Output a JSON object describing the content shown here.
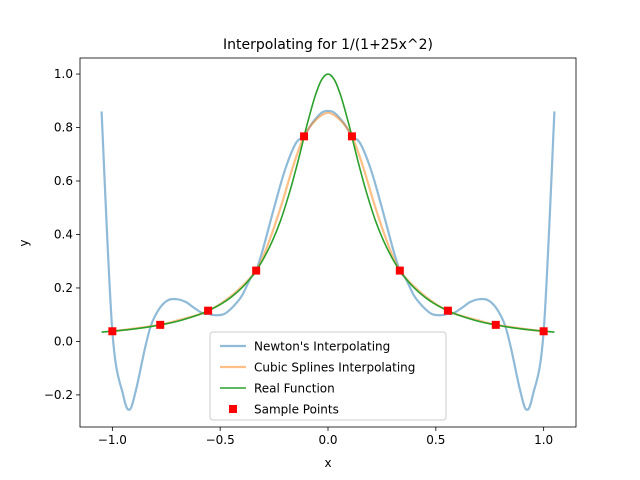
{
  "chart_data": {
    "type": "line",
    "title": "Interpolating for 1/(1+25x^2)",
    "xlabel": "x",
    "ylabel": "y",
    "xlim": [
      -1.15,
      1.15
    ],
    "ylim": [
      -0.32,
      1.06
    ],
    "xticks": [
      -1.0,
      -0.5,
      0.0,
      0.5,
      1.0
    ],
    "xtick_labels": [
      "−1.0",
      "−0.5",
      "0.0",
      "0.5",
      "1.0"
    ],
    "yticks": [
      -0.2,
      0.0,
      0.2,
      0.4,
      0.6,
      0.8,
      1.0
    ],
    "ytick_labels": [
      "−0.2",
      "0.0",
      "0.2",
      "0.4",
      "0.6",
      "0.8",
      "1.0"
    ],
    "grid": false,
    "legend_position": "lower center",
    "series": [
      {
        "name": "Newton's Interpolating",
        "kind": "line",
        "color": "#1f77b4",
        "alpha": 0.5,
        "x": [
          -1.05,
          -1.0,
          -0.95,
          -0.92,
          -0.89,
          -0.85,
          -0.82,
          -0.78,
          -0.74,
          -0.7,
          -0.66,
          -0.62,
          -0.58,
          -0.556,
          -0.52,
          -0.48,
          -0.44,
          -0.4,
          -0.36,
          -0.333,
          -0.3,
          -0.25,
          -0.2,
          -0.15,
          -0.111,
          -0.07,
          -0.03,
          0.0,
          0.03,
          0.07,
          0.111,
          0.15,
          0.2,
          0.25,
          0.3,
          0.333,
          0.36,
          0.4,
          0.44,
          0.48,
          0.52,
          0.556,
          0.58,
          0.62,
          0.66,
          0.7,
          0.74,
          0.78,
          0.82,
          0.85,
          0.89,
          0.92,
          0.95,
          1.0,
          1.05
        ],
        "y": [
          0.86,
          0.038,
          -0.2,
          -0.255,
          -0.18,
          -0.03,
          0.062,
          0.125,
          0.155,
          0.158,
          0.148,
          0.125,
          0.105,
          0.103,
          0.098,
          0.103,
          0.13,
          0.17,
          0.235,
          0.265,
          0.35,
          0.5,
          0.64,
          0.74,
          0.77,
          0.82,
          0.855,
          0.862,
          0.855,
          0.82,
          0.77,
          0.74,
          0.64,
          0.5,
          0.35,
          0.265,
          0.235,
          0.17,
          0.13,
          0.103,
          0.098,
          0.103,
          0.105,
          0.125,
          0.148,
          0.158,
          0.155,
          0.125,
          0.062,
          -0.03,
          -0.18,
          -0.255,
          -0.2,
          0.038,
          0.86
        ]
      },
      {
        "name": "Cubic Splines Interpolating",
        "kind": "line",
        "color": "#ff7f0e",
        "alpha": 0.5,
        "x": [
          -1.0,
          -0.9,
          -0.778,
          -0.7,
          -0.6,
          -0.556,
          -0.5,
          -0.42,
          -0.333,
          -0.28,
          -0.22,
          -0.16,
          -0.111,
          -0.06,
          0.0,
          0.06,
          0.111,
          0.16,
          0.22,
          0.28,
          0.333,
          0.42,
          0.5,
          0.556,
          0.6,
          0.7,
          0.778,
          0.9,
          1.0
        ],
        "y": [
          0.038,
          0.048,
          0.062,
          0.078,
          0.1,
          0.115,
          0.14,
          0.19,
          0.265,
          0.36,
          0.5,
          0.66,
          0.767,
          0.825,
          0.855,
          0.825,
          0.767,
          0.66,
          0.5,
          0.36,
          0.265,
          0.19,
          0.14,
          0.115,
          0.1,
          0.078,
          0.062,
          0.048,
          0.038
        ]
      },
      {
        "name": "Real Function",
        "kind": "line",
        "color": "#2ca02c",
        "alpha": 1.0,
        "x": [
          -1.05,
          -0.95,
          -0.85,
          -0.778,
          -0.7,
          -0.6,
          -0.556,
          -0.5,
          -0.45,
          -0.4,
          -0.36,
          -0.333,
          -0.3,
          -0.26,
          -0.22,
          -0.18,
          -0.15,
          -0.12,
          -0.111,
          -0.09,
          -0.06,
          -0.03,
          0.0,
          0.03,
          0.06,
          0.09,
          0.111,
          0.12,
          0.15,
          0.18,
          0.22,
          0.26,
          0.3,
          0.333,
          0.36,
          0.4,
          0.45,
          0.5,
          0.556,
          0.6,
          0.7,
          0.778,
          0.85,
          0.95,
          1.05
        ],
        "y": [
          0.035,
          0.042,
          0.052,
          0.062,
          0.075,
          0.1,
          0.115,
          0.138,
          0.165,
          0.2,
          0.236,
          0.265,
          0.308,
          0.372,
          0.452,
          0.553,
          0.64,
          0.735,
          0.767,
          0.832,
          0.917,
          0.978,
          1.0,
          0.978,
          0.917,
          0.832,
          0.767,
          0.735,
          0.64,
          0.553,
          0.452,
          0.372,
          0.308,
          0.265,
          0.236,
          0.2,
          0.165,
          0.138,
          0.115,
          0.1,
          0.075,
          0.062,
          0.052,
          0.042,
          0.035
        ]
      },
      {
        "name": "Sample Points",
        "kind": "scatter",
        "color": "#ff0000",
        "x": [
          -1.0,
          -0.778,
          -0.556,
          -0.333,
          -0.111,
          0.111,
          0.333,
          0.556,
          0.778,
          1.0
        ],
        "y": [
          0.038,
          0.062,
          0.115,
          0.265,
          0.767,
          0.767,
          0.265,
          0.115,
          0.062,
          0.038
        ]
      }
    ]
  }
}
